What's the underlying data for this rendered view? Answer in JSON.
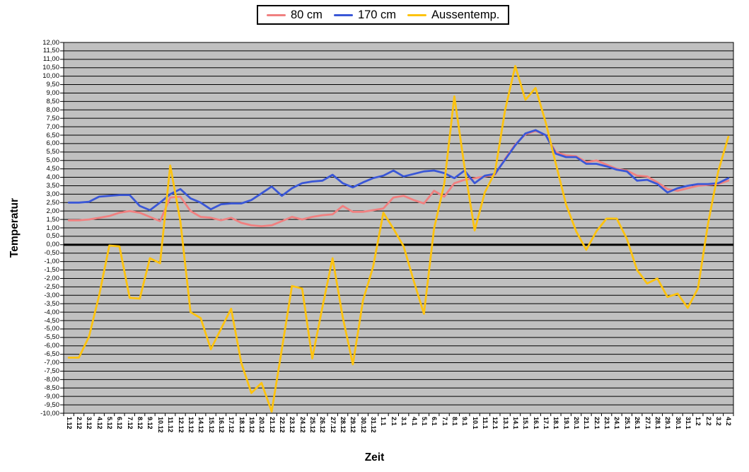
{
  "axes_titles": {
    "x": "Zeit",
    "y": "Temperatur"
  },
  "legend": {
    "items": [
      {
        "label": "80 cm",
        "color": "#f08080"
      },
      {
        "label": "170 cm",
        "color": "#3a57d7"
      },
      {
        "label": "Aussentemp.",
        "color": "#fdc30f"
      }
    ]
  },
  "colors": {
    "plot_background": "#c0c0c0",
    "grid": "#000000",
    "zero_line": "#000000",
    "page_background": "#ffffff"
  },
  "chart_data": {
    "type": "line",
    "title": "",
    "xlabel": "Zeit",
    "ylabel": "Temperatur",
    "ylim": [
      -10,
      12
    ],
    "ytick_step": 0.5,
    "grid": "horizontal",
    "legend_position": "top-center",
    "zero_line": true,
    "y_tick_labels": [
      "12,00",
      "11,50",
      "11,00",
      "10,50",
      "10,00",
      "9,50",
      "9,00",
      "8,50",
      "8,00",
      "7,50",
      "7,00",
      "6,50",
      "6,00",
      "5,50",
      "5,00",
      "4,50",
      "4,00",
      "3,50",
      "3,00",
      "2,50",
      "2,00",
      "1,50",
      "1,00",
      "0,50",
      "0,00",
      "-0,50",
      "-1,00",
      "-1,50",
      "-2,00",
      "-2,50",
      "-3,00",
      "-3,50",
      "-4,00",
      "-4,50",
      "-5,00",
      "-5,50",
      "-6,00",
      "-6,50",
      "-7,00",
      "-7,50",
      "-8,00",
      "-8,50",
      "-9,00",
      "-9,50",
      "-10,00"
    ],
    "categories": [
      "1.12",
      "2.12",
      "3.12",
      "4.12",
      "5.12",
      "6.12",
      "7.12",
      "8.12",
      "9.12",
      "10.12",
      "11.12",
      "12.12",
      "13.12",
      "14.12",
      "15.12",
      "16.12",
      "17.12",
      "18.12",
      "19.12",
      "20.12",
      "21.12",
      "22.12",
      "23.12",
      "24.12",
      "25.12",
      "26.12",
      "27.12",
      "28.12",
      "29.12",
      "30.12",
      "31.12",
      "1.1",
      "2.1",
      "3.1",
      "4.1",
      "5.1",
      "6.1",
      "7.1",
      "8.1",
      "9.1",
      "10.1",
      "11.1",
      "12.1",
      "13.1",
      "14.1",
      "15.1",
      "16.1",
      "17.1",
      "18.1",
      "19.1",
      "20.1",
      "21.1",
      "22.1",
      "23.1",
      "24.1",
      "25.1",
      "26.1",
      "27.1",
      "28.1",
      "29.1",
      "30.1",
      "31.1",
      "1.2",
      "2.2",
      "3.2",
      "4.2"
    ],
    "series": [
      {
        "name": "80 cm",
        "color": "#f08080",
        "values": [
          1.45,
          1.45,
          1.5,
          1.6,
          1.7,
          1.9,
          2.0,
          1.9,
          1.65,
          1.4,
          2.8,
          2.85,
          2.0,
          1.65,
          1.6,
          1.45,
          1.6,
          1.3,
          1.15,
          1.1,
          1.15,
          1.4,
          1.65,
          1.5,
          1.65,
          1.75,
          1.8,
          2.3,
          1.95,
          1.95,
          2.05,
          2.15,
          2.8,
          2.9,
          2.65,
          2.45,
          3.2,
          2.85,
          3.65,
          3.85,
          3.95,
          4.05,
          4.15,
          5.1,
          5.95,
          6.55,
          6.75,
          6.5,
          5.5,
          5.3,
          5.25,
          4.9,
          5.0,
          4.75,
          4.5,
          4.4,
          4.1,
          4.05,
          3.7,
          3.3,
          3.2,
          3.35,
          3.5,
          3.55,
          3.6,
          3.8
        ]
      },
      {
        "name": "170 cm",
        "color": "#3a57d7",
        "values": [
          2.5,
          2.5,
          2.55,
          2.85,
          2.9,
          2.95,
          2.95,
          2.3,
          2.05,
          2.5,
          3.0,
          3.3,
          2.75,
          2.5,
          2.1,
          2.4,
          2.45,
          2.45,
          2.65,
          3.05,
          3.45,
          2.9,
          3.35,
          3.65,
          3.75,
          3.8,
          4.15,
          3.65,
          3.4,
          3.7,
          3.95,
          4.1,
          4.4,
          4.05,
          4.2,
          4.35,
          4.4,
          4.25,
          3.95,
          4.4,
          3.65,
          4.1,
          4.2,
          5.05,
          5.9,
          6.6,
          6.8,
          6.5,
          5.4,
          5.2,
          5.2,
          4.8,
          4.8,
          4.65,
          4.45,
          4.35,
          3.8,
          3.85,
          3.6,
          3.1,
          3.35,
          3.5,
          3.6,
          3.6,
          3.65,
          3.95
        ]
      },
      {
        "name": "Aussentemp.",
        "color": "#fdc30f",
        "values": [
          -6.7,
          -6.7,
          -5.45,
          -3.0,
          -0.05,
          -0.1,
          -3.15,
          -3.2,
          -0.8,
          -1.1,
          4.7,
          1.4,
          -4.0,
          -4.35,
          -6.2,
          -5.0,
          -3.8,
          -7.0,
          -8.8,
          -8.2,
          -9.9,
          -6.2,
          -2.45,
          -2.6,
          -6.75,
          -3.7,
          -0.8,
          -4.3,
          -7.1,
          -3.3,
          -1.3,
          1.9,
          0.95,
          -0.1,
          -2.15,
          -4.1,
          0.95,
          3.6,
          8.8,
          4.6,
          0.85,
          3.1,
          4.3,
          8.0,
          10.6,
          8.6,
          9.3,
          7.25,
          4.8,
          2.4,
          0.8,
          -0.3,
          0.8,
          1.55,
          1.55,
          0.35,
          -1.5,
          -2.3,
          -2.0,
          -3.1,
          -2.9,
          -3.75,
          -2.6,
          1.25,
          4.35,
          6.4
        ]
      }
    ]
  }
}
